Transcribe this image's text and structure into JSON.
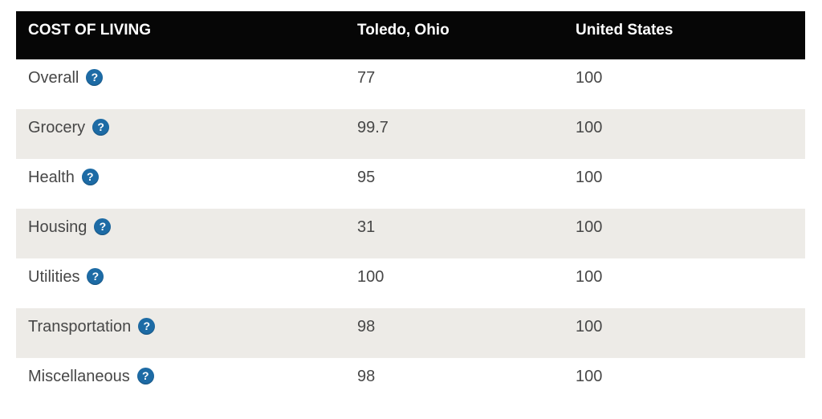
{
  "header": {
    "col1": "COST OF LIVING",
    "col2": "Toledo, Ohio",
    "col3": "United States"
  },
  "rows": [
    {
      "label": "Overall",
      "toledo": "77",
      "us": "100"
    },
    {
      "label": "Grocery",
      "toledo": "99.7",
      "us": "100"
    },
    {
      "label": "Health",
      "toledo": "95",
      "us": "100"
    },
    {
      "label": "Housing",
      "toledo": "31",
      "us": "100"
    },
    {
      "label": "Utilities",
      "toledo": "100",
      "us": "100"
    },
    {
      "label": "Transportation",
      "toledo": "98",
      "us": "100"
    },
    {
      "label": "Miscellaneous",
      "toledo": "98",
      "us": "100"
    }
  ],
  "help_icon": {
    "glyph": "?",
    "color": "#1d6ba5"
  },
  "colors": {
    "header_bg": "#060606",
    "header_text": "#ffffff",
    "row_alt_bg": "#edebe7",
    "row_bg": "#ffffff",
    "text": "#474747",
    "help_blue": "#1d6ba5"
  },
  "chart_data": {
    "type": "table",
    "title": "COST OF LIVING",
    "categories": [
      "Overall",
      "Grocery",
      "Health",
      "Housing",
      "Utilities",
      "Transportation",
      "Miscellaneous"
    ],
    "series": [
      {
        "name": "Toledo, Ohio",
        "values": [
          77,
          99.7,
          95,
          31,
          100,
          98,
          98
        ]
      },
      {
        "name": "United States",
        "values": [
          100,
          100,
          100,
          100,
          100,
          100,
          100
        ]
      }
    ]
  }
}
